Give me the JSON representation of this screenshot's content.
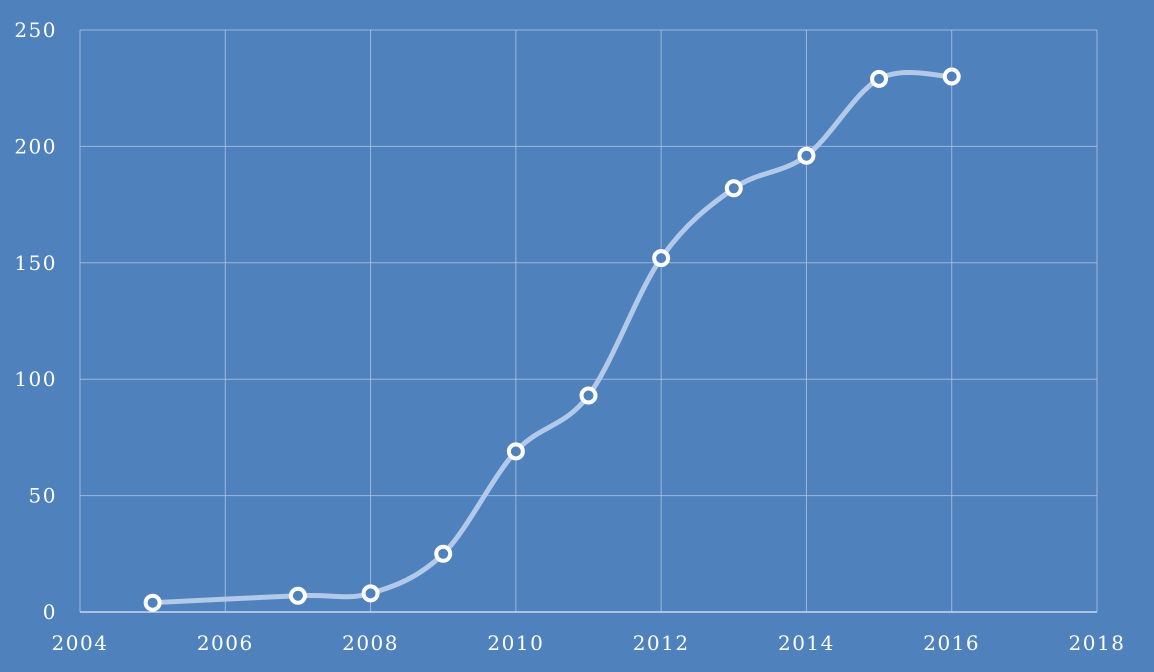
{
  "chart_data": {
    "type": "line",
    "title": "",
    "xlabel": "",
    "ylabel": "",
    "xlim": [
      2004,
      2018
    ],
    "ylim": [
      0,
      250
    ],
    "x_ticks": [
      2004,
      2006,
      2008,
      2010,
      2012,
      2014,
      2016,
      2018
    ],
    "y_ticks": [
      0,
      50,
      100,
      150,
      200,
      250
    ],
    "grid": true,
    "smooth": true,
    "colors": {
      "background": "#4f81bd",
      "line": "#b3c9ea",
      "marker_edge": "#ffffff",
      "grid": "#a9c2e2"
    },
    "series": [
      {
        "x": [
          2005,
          2007,
          2008,
          2009,
          2010,
          2011,
          2012,
          2013,
          2014,
          2015,
          2016
        ],
        "y": [
          4,
          7,
          8,
          25,
          69,
          93,
          152,
          182,
          196,
          229,
          230
        ]
      }
    ]
  }
}
